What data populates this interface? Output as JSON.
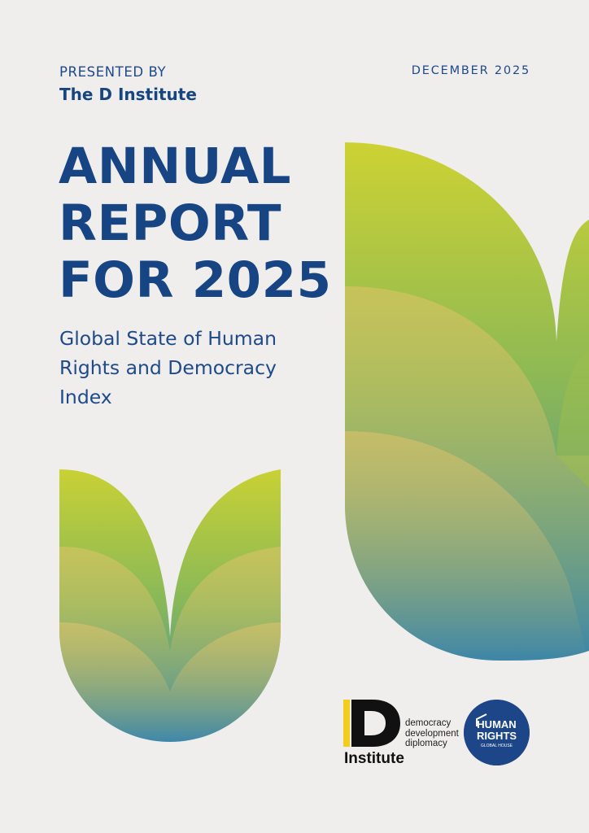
{
  "header": {
    "presented_by": "PRESENTED BY",
    "presenter": "The D Institute",
    "date": "DECEMBER 2025"
  },
  "title": {
    "line1": "ANNUAL",
    "line2": "REPORT",
    "line3": "FOR 2025"
  },
  "subtitle": {
    "line1": "Global State of Human",
    "line2": "Rights and Democracy",
    "line3": "Index"
  },
  "logos": {
    "d_institute": {
      "letter": "D",
      "name": "Institute",
      "tagline": [
        "democracy",
        "development",
        "diplomacy"
      ]
    },
    "human_rights": {
      "line1": "HUMAN",
      "line2": "RIGHTS",
      "line3": "GLOBAL HOUSE"
    }
  },
  "colors": {
    "navy": "#174584",
    "background": "#efeeec",
    "gradient_top": "#cbd235",
    "gradient_mid": "#8db952",
    "gradient_bottom": "#3c86a8",
    "badge": "#1d4688",
    "logo_yellow": "#f3cc1e"
  }
}
